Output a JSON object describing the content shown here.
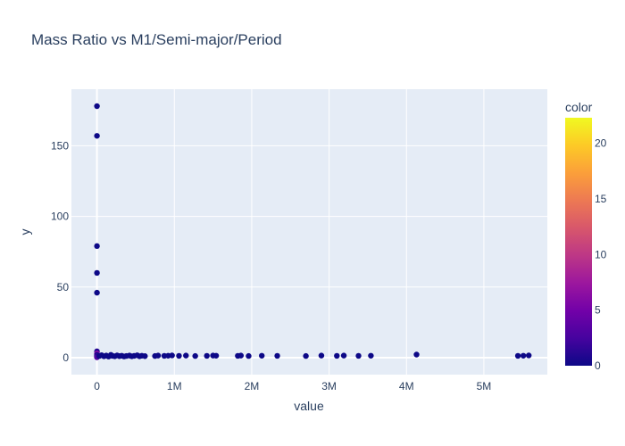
{
  "chart_data": {
    "type": "scatter",
    "title": "Mass Ratio vs M1/Semi-major/Period",
    "xlabel": "value",
    "ylabel": "y",
    "xlim": [
      -330000,
      5820000
    ],
    "ylim": [
      -12,
      190
    ],
    "x_ticks": [
      {
        "value": 0,
        "label": "0"
      },
      {
        "value": 1000000,
        "label": "1M"
      },
      {
        "value": 2000000,
        "label": "2M"
      },
      {
        "value": 3000000,
        "label": "3M"
      },
      {
        "value": 4000000,
        "label": "4M"
      },
      {
        "value": 5000000,
        "label": "5M"
      }
    ],
    "y_ticks": [
      0,
      50,
      100,
      150
    ],
    "grid": true,
    "colorbar": {
      "title": "color",
      "range": [
        0,
        22.3
      ],
      "ticks": [
        0,
        5,
        10,
        15,
        20
      ],
      "colorscale": [
        "#0d0887",
        "#46039f",
        "#7201a8",
        "#9c179e",
        "#bd3786",
        "#d8576b",
        "#ed7953",
        "#fb9f3a",
        "#fdca26",
        "#f0f921"
      ]
    },
    "points": [
      [
        0,
        178,
        0
      ],
      [
        0,
        157,
        0
      ],
      [
        0,
        79,
        0
      ],
      [
        0,
        60,
        0
      ],
      [
        0,
        46,
        0
      ],
      [
        0,
        4.5,
        1
      ],
      [
        0,
        3,
        6
      ],
      [
        0,
        2.5,
        7
      ],
      [
        0,
        2,
        1
      ],
      [
        0,
        1.5,
        0
      ],
      [
        0,
        1,
        4
      ],
      [
        0,
        0.8,
        2
      ],
      [
        0,
        0.5,
        0
      ],
      [
        0,
        0.3,
        3
      ],
      [
        30000,
        1.2,
        0
      ],
      [
        60000,
        1.8,
        0
      ],
      [
        90000,
        1,
        0
      ],
      [
        120000,
        1.5,
        0
      ],
      [
        150000,
        0.8,
        0
      ],
      [
        180000,
        2,
        0
      ],
      [
        200000,
        1.3,
        0
      ],
      [
        230000,
        1,
        0
      ],
      [
        260000,
        1.6,
        0
      ],
      [
        290000,
        1.1,
        0
      ],
      [
        320000,
        1.4,
        0
      ],
      [
        350000,
        0.9,
        0
      ],
      [
        380000,
        1.2,
        0
      ],
      [
        420000,
        1.5,
        0
      ],
      [
        450000,
        1,
        0
      ],
      [
        480000,
        1.3,
        0
      ],
      [
        520000,
        1.7,
        0
      ],
      [
        550000,
        1,
        0
      ],
      [
        580000,
        1.4,
        0
      ],
      [
        620000,
        1.1,
        0
      ],
      [
        750000,
        1.2,
        0
      ],
      [
        790000,
        1.5,
        0
      ],
      [
        870000,
        1.3,
        0
      ],
      [
        920000,
        1.4,
        0
      ],
      [
        970000,
        1.6,
        0
      ],
      [
        1060000,
        1.3,
        0
      ],
      [
        1150000,
        1.5,
        0
      ],
      [
        1270000,
        1.2,
        0
      ],
      [
        1420000,
        1.3,
        0
      ],
      [
        1500000,
        1.5,
        0
      ],
      [
        1540000,
        1.4,
        0
      ],
      [
        1820000,
        1.3,
        0
      ],
      [
        1860000,
        1.5,
        0
      ],
      [
        1960000,
        1.2,
        0
      ],
      [
        2130000,
        1.4,
        0
      ],
      [
        2330000,
        1.3,
        0
      ],
      [
        2700000,
        1.2,
        0
      ],
      [
        2900000,
        1.5,
        0
      ],
      [
        3100000,
        1.3,
        0
      ],
      [
        3190000,
        1.5,
        0
      ],
      [
        3380000,
        1.3,
        0
      ],
      [
        3540000,
        1.4,
        0
      ],
      [
        4130000,
        2.2,
        0
      ],
      [
        5440000,
        1.3,
        0
      ],
      [
        5510000,
        1.4,
        0
      ],
      [
        5580000,
        1.6,
        0
      ]
    ]
  }
}
